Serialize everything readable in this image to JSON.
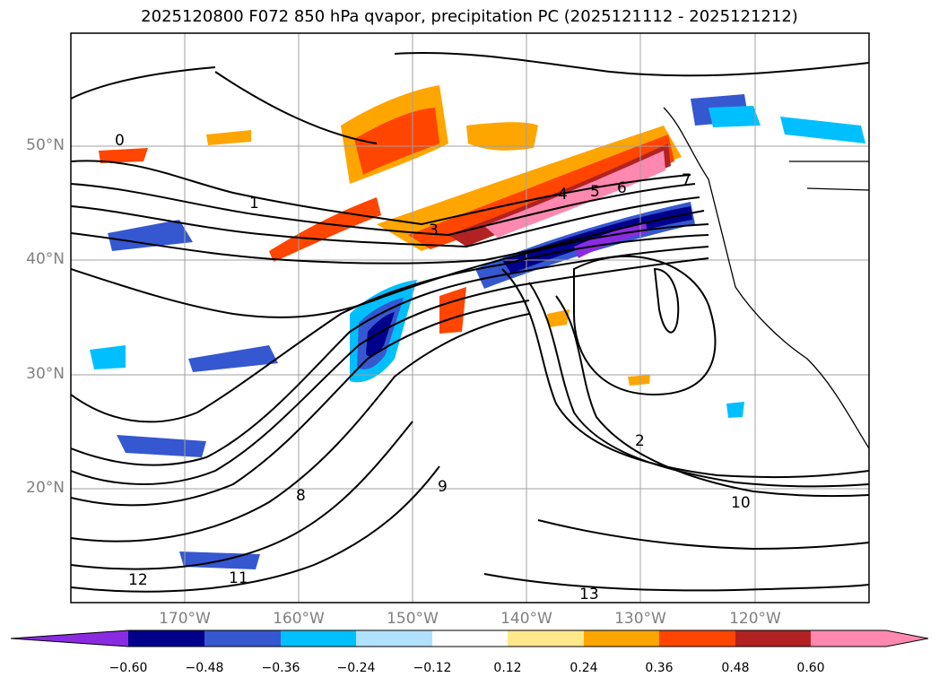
{
  "title": "2025120800 F072 850 hPa qvapor, precipitation PC (2025121112 - 2025121212)",
  "map": {
    "lat_labels": [
      "50°N",
      "40°N",
      "30°N",
      "20°N"
    ],
    "lon_labels": [
      "170°W",
      "160°W",
      "150°W",
      "140°W",
      "130°W",
      "120°W"
    ],
    "contour_labels": [
      "0",
      "1",
      "2",
      "3",
      "4",
      "5",
      "6",
      "7",
      "8",
      "9",
      "10",
      "11",
      "12",
      "13"
    ]
  },
  "colorbar": {
    "ticks": [
      "−0.60",
      "−0.48",
      "−0.36",
      "−0.24",
      "−0.12",
      "0.12",
      "0.24",
      "0.36",
      "0.48",
      "0.60"
    ],
    "colors": [
      "#8a2be2",
      "#00008b",
      "#3558d0",
      "#00bfff",
      "#b0e2ff",
      "#ffffff",
      "#ffe88a",
      "#ffa500",
      "#ff4500",
      "#b22222",
      "#ff88b0"
    ]
  }
}
